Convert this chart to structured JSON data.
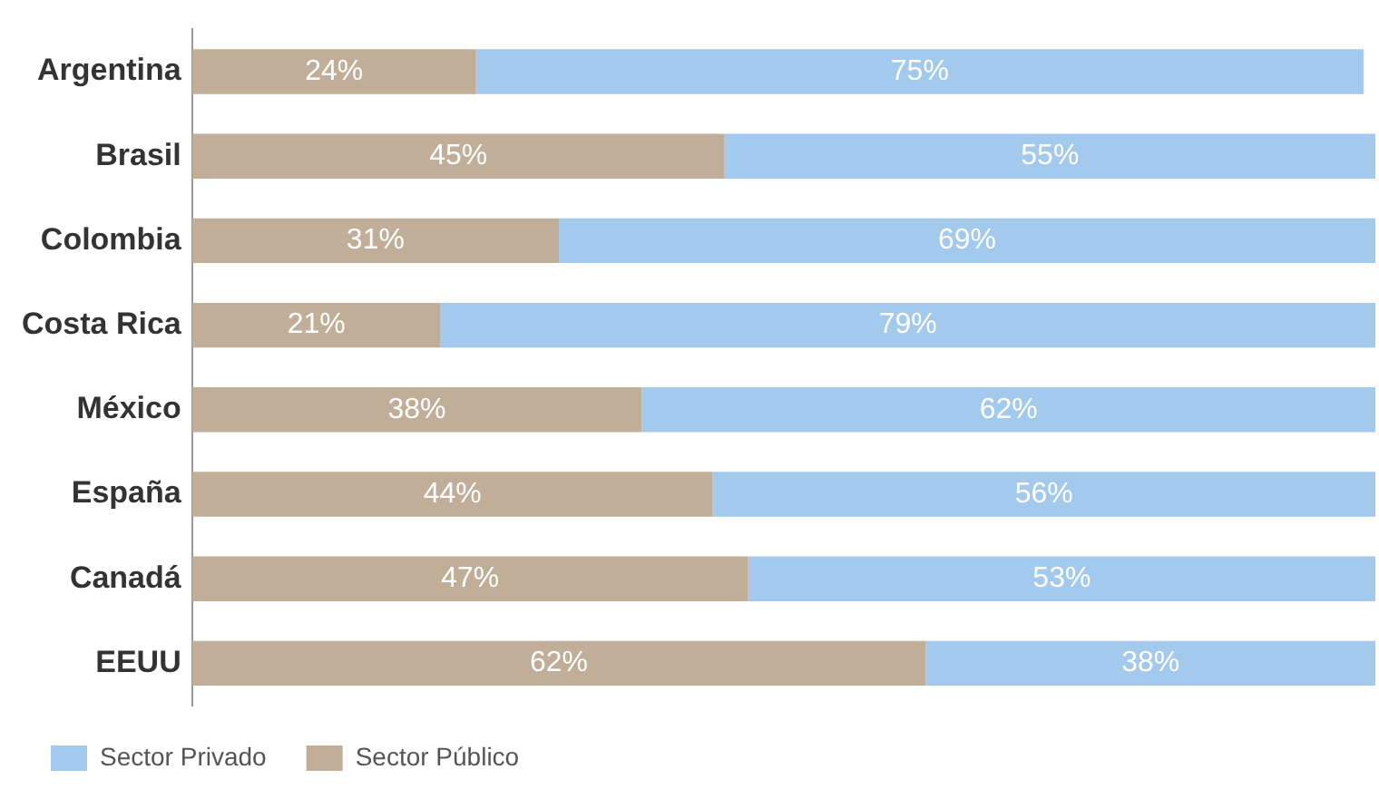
{
  "chart_data": {
    "type": "bar",
    "orientation": "horizontal",
    "stacked": true,
    "categories": [
      "Argentina",
      "Brasil",
      "Colombia",
      "Costa Rica",
      "México",
      "España",
      "Canadá",
      "EEUU"
    ],
    "series": [
      {
        "name": "Sector Público",
        "color": "#c1ae98",
        "values": [
          24,
          45,
          31,
          21,
          38,
          44,
          47,
          62
        ],
        "value_labels": [
          "24%",
          "45%",
          "31%",
          "21%",
          "38%",
          "44%",
          "47%",
          "62%"
        ]
      },
      {
        "name": "Sector Privado",
        "color": "#a3c9ec",
        "values": [
          75,
          55,
          69,
          79,
          62,
          56,
          53,
          38
        ],
        "value_labels": [
          "75%",
          "55%",
          "69%",
          "79%",
          "62%",
          "56%",
          "53%",
          "38%"
        ]
      }
    ],
    "xlim": [
      0,
      100
    ],
    "tick_labels": "y",
    "grid": false,
    "legend": "bottom left"
  }
}
